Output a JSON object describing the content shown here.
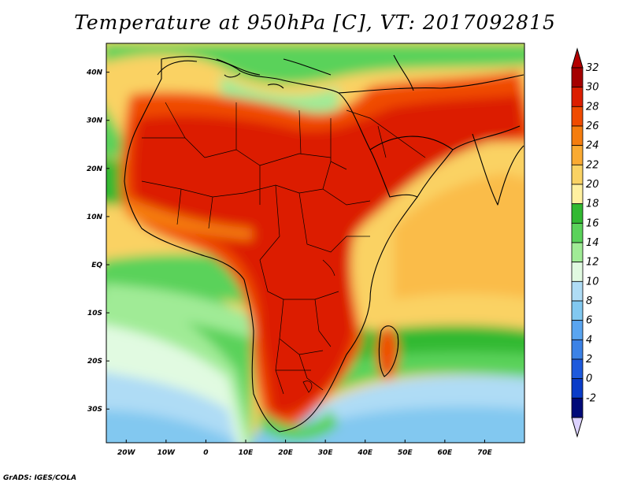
{
  "title": "Temperature at 950hPa [C], VT: 2017092815",
  "credit": "GrADS: IGES/COLA",
  "map": {
    "lon_range": [
      -25,
      80
    ],
    "lat_range": [
      -37,
      46
    ],
    "lon_ticks": [
      {
        "value": -20,
        "label": "20W"
      },
      {
        "value": -10,
        "label": "10W"
      },
      {
        "value": 0,
        "label": "0"
      },
      {
        "value": 10,
        "label": "10E"
      },
      {
        "value": 20,
        "label": "20E"
      },
      {
        "value": 30,
        "label": "30E"
      },
      {
        "value": 40,
        "label": "40E"
      },
      {
        "value": 50,
        "label": "50E"
      },
      {
        "value": 60,
        "label": "60E"
      },
      {
        "value": 70,
        "label": "70E"
      }
    ],
    "lat_ticks": [
      {
        "value": 40,
        "label": "40N"
      },
      {
        "value": 30,
        "label": "30N"
      },
      {
        "value": 20,
        "label": "20N"
      },
      {
        "value": 10,
        "label": "10N"
      },
      {
        "value": 0,
        "label": "EQ"
      },
      {
        "value": -10,
        "label": "10S"
      },
      {
        "value": -20,
        "label": "20S"
      },
      {
        "value": -30,
        "label": "30S"
      }
    ]
  },
  "colorbar": {
    "levels": [
      {
        "label": "32",
        "color": "#a50000"
      },
      {
        "label": "30",
        "color": "#dc1e00"
      },
      {
        "label": "28",
        "color": "#f04b00"
      },
      {
        "label": "26",
        "color": "#f57d0f"
      },
      {
        "label": "24",
        "color": "#faaa32"
      },
      {
        "label": "22",
        "color": "#fad264"
      },
      {
        "label": "20",
        "color": "#fff0a0"
      },
      {
        "label": "18",
        "color": "#32b932"
      },
      {
        "label": "16",
        "color": "#5ad25a"
      },
      {
        "label": "14",
        "color": "#a0eb96"
      },
      {
        "label": "12",
        "color": "#e1fae1"
      },
      {
        "label": "10",
        "color": "#afdcf5"
      },
      {
        "label": "8",
        "color": "#82c8f0"
      },
      {
        "label": "6",
        "color": "#5aa5f0"
      },
      {
        "label": "4",
        "color": "#3c82e6"
      },
      {
        "label": "2",
        "color": "#1e5adc"
      },
      {
        "label": "0",
        "color": "#0a3cc8"
      },
      {
        "label": "-2",
        "color": "#000a78"
      }
    ],
    "top_extension_color": "#b40000",
    "bottom_extension_color": "#dcd2ff",
    "colors": [
      "#000a78",
      "#0a3cc8",
      "#1e5adc",
      "#3c82e6",
      "#5aa5f0",
      "#82c8f0",
      "#afdcf5",
      "#e1fae1",
      "#a0eb96",
      "#5ad25a",
      "#32b932",
      "#fff0a0",
      "#fad264",
      "#faaa32",
      "#f57d0f",
      "#f04b00",
      "#dc1e00",
      "#a50000"
    ]
  }
}
